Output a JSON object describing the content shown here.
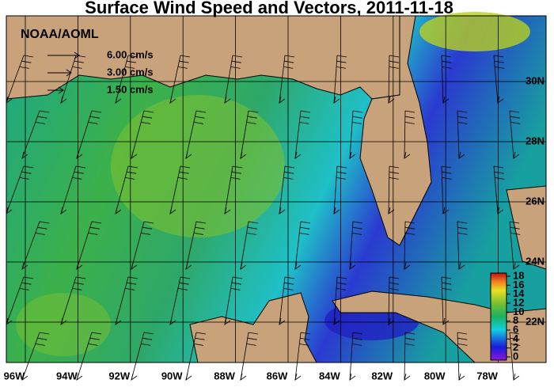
{
  "map": {
    "title": "Surface Wind Speed and Vectors, 2011-11-18",
    "credit": "NOAA/AOML",
    "legend": [
      "6.00 cm/s",
      "3.00 cm/s",
      "1.50 cm/s"
    ],
    "lon_labels": [
      "96W",
      "94W",
      "92W",
      "90W",
      "88W",
      "86W",
      "84W",
      "82W",
      "80W",
      "78W"
    ],
    "lat_labels": [
      "30N",
      "28N",
      "26N",
      "24N",
      "22N"
    ],
    "colorbar_ticks": [
      0,
      2,
      4,
      6,
      8,
      10,
      12,
      14,
      16,
      18
    ]
  }
}
